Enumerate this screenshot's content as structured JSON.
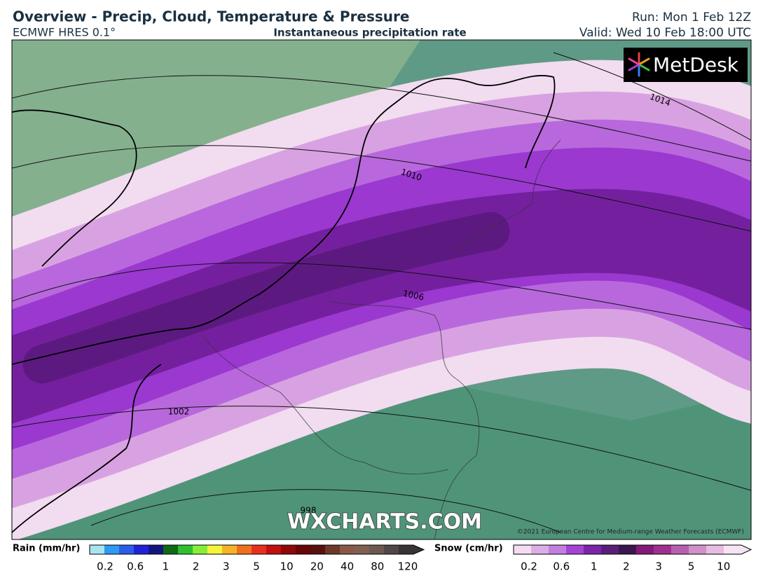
{
  "header": {
    "title": "Overview - Precip, Cloud, Temperature & Pressure",
    "model": "ECMWF HRES 0.1°",
    "subtitle": "Instantaneous precipitation rate",
    "run": "Run: Mon 1 Feb 12Z",
    "valid": "Valid: Wed 10 Feb 18:00 UTC"
  },
  "logo": "MetDesk",
  "isobars": [
    "1014",
    "1010",
    "1006",
    "1002",
    "998"
  ],
  "watermark": "WXCHARTS.COM",
  "copyright": "©2021 European Centre for Medium-range Weather Forecasts (ECMWF)",
  "legend": {
    "rain": {
      "label": "Rain (mm/hr)",
      "ticks": [
        "0.2",
        "0.6",
        "1",
        "2",
        "3",
        "5",
        "10",
        "20",
        "40",
        "80",
        "120"
      ],
      "colors": [
        "#a8e4f0",
        "#2e9af0",
        "#2a5ee8",
        "#2222d8",
        "#151580",
        "#0e6a14",
        "#2ec030",
        "#86ee3a",
        "#f4f43c",
        "#f4b428",
        "#f07020",
        "#e83020",
        "#c01010",
        "#900808",
        "#6a0606",
        "#581010",
        "#6e3828",
        "#8a5848",
        "#806050",
        "#6a5a50",
        "#504848",
        "#383434"
      ]
    },
    "snow": {
      "label": "Snow (cm/hr)",
      "ticks": [
        "0.2",
        "0.6",
        "1",
        "2",
        "3",
        "5",
        "10"
      ],
      "colors": [
        "#f4dcf2",
        "#dcaee6",
        "#c47ee0",
        "#a444d4",
        "#7a26a8",
        "#5a1e78",
        "#3c1650",
        "#841a78",
        "#a03090",
        "#b860b0",
        "#d090c8",
        "#e8bce2",
        "#f6e4f4"
      ]
    }
  }
}
